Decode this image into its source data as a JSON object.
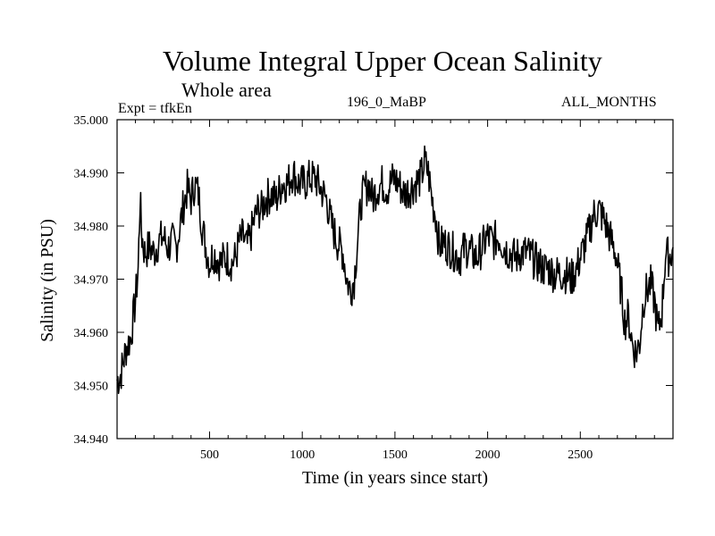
{
  "chart_data": {
    "type": "line",
    "title": "Volume Integral Upper Ocean Salinity",
    "subtitle": "Whole area",
    "annotations": {
      "experiment": "Expt = tfkEn",
      "run": "196_0_MaBP",
      "period": "ALL_MONTHS"
    },
    "xlabel": "Time (in years since start)",
    "ylabel": "Salinity (in PSU)",
    "xlim": [
      1,
      3000
    ],
    "ylim": [
      34.94,
      35.0
    ],
    "xticks": [
      500,
      1000,
      1500,
      2000,
      2500
    ],
    "xtick_labels": [
      "500",
      "1000",
      "1500",
      "2000",
      "2500"
    ],
    "yticks": [
      34.94,
      34.95,
      34.96,
      34.97,
      34.98,
      34.99,
      35.0
    ],
    "ytick_labels": [
      "34.940",
      "34.950",
      "34.960",
      "34.970",
      "34.980",
      "34.990",
      "35.000"
    ],
    "grid": false,
    "series": [
      {
        "x": [
          1,
          20,
          50,
          75,
          100,
          115,
          125,
          135,
          150,
          175,
          200,
          225,
          250,
          275,
          300,
          320,
          340,
          360,
          380,
          400,
          420,
          440,
          460,
          480,
          500,
          520,
          540,
          560,
          580,
          600,
          620,
          640,
          660,
          680,
          700,
          720,
          740,
          760,
          780,
          800,
          830,
          860,
          890,
          920,
          950,
          980,
          1010,
          1040,
          1070,
          1100,
          1130,
          1160,
          1190,
          1220,
          1240,
          1260,
          1280,
          1300,
          1320,
          1340,
          1360,
          1380,
          1400,
          1430,
          1460,
          1490,
          1520,
          1550,
          1580,
          1610,
          1640,
          1660,
          1680,
          1700,
          1720,
          1740,
          1760,
          1790,
          1820,
          1850,
          1880,
          1910,
          1940,
          1970,
          2000,
          2030,
          2060,
          2090,
          2120,
          2150,
          2180,
          2210,
          2240,
          2270,
          2300,
          2330,
          2360,
          2390,
          2420,
          2450,
          2480,
          2510,
          2540,
          2570,
          2600,
          2630,
          2660,
          2690,
          2720,
          2740,
          2760,
          2780,
          2800,
          2820,
          2840,
          2860,
          2880,
          2900,
          2920,
          2940,
          2960,
          2980,
          3000
        ],
        "values": [
          34.951,
          34.952,
          34.957,
          34.959,
          34.966,
          34.972,
          34.985,
          34.978,
          34.975,
          34.976,
          34.975,
          34.977,
          34.978,
          34.976,
          34.977,
          34.976,
          34.98,
          34.984,
          34.987,
          34.985,
          34.988,
          34.986,
          34.98,
          34.976,
          34.973,
          34.975,
          34.974,
          34.973,
          34.974,
          34.974,
          34.973,
          34.974,
          34.977,
          34.978,
          34.976,
          34.978,
          34.981,
          34.983,
          34.983,
          34.985,
          34.986,
          34.985,
          34.988,
          34.988,
          34.99,
          34.988,
          34.988,
          34.989,
          34.989,
          34.987,
          34.985,
          34.98,
          34.977,
          34.975,
          34.97,
          34.968,
          34.97,
          34.978,
          34.985,
          34.987,
          34.988,
          34.985,
          34.987,
          34.988,
          34.987,
          34.989,
          34.988,
          34.986,
          34.987,
          34.988,
          34.989,
          34.992,
          34.99,
          34.985,
          34.982,
          34.976,
          34.977,
          34.976,
          34.975,
          34.974,
          34.976,
          34.975,
          34.974,
          34.976,
          34.978,
          34.977,
          34.978,
          34.976,
          34.975,
          34.974,
          34.975,
          34.975,
          34.974,
          34.973,
          34.972,
          34.972,
          34.971,
          34.971,
          34.971,
          34.97,
          34.972,
          34.975,
          34.978,
          34.982,
          34.983,
          34.981,
          34.978,
          34.975,
          34.968,
          34.962,
          34.963,
          34.958,
          34.956,
          34.958,
          34.966,
          34.968,
          34.969,
          34.966,
          34.96,
          34.964,
          34.975,
          34.974,
          34.976
        ]
      }
    ]
  }
}
